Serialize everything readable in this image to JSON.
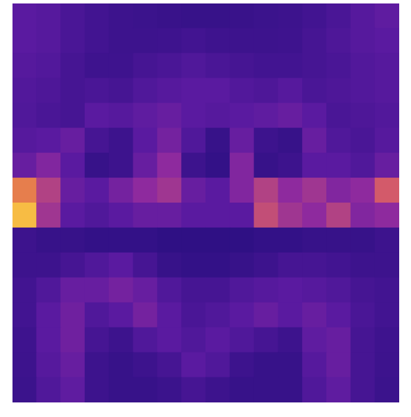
{
  "chart_data": {
    "type": "heatmap",
    "tick_labels": false,
    "xlim": [
      0,
      16
    ],
    "ylim": [
      0,
      16
    ],
    "color_range": [
      0,
      1
    ],
    "cells": [
      [
        0.3,
        0.28,
        0.22,
        0.18,
        0.15,
        0.14,
        0.13,
        0.12,
        0.12,
        0.13,
        0.14,
        0.15,
        0.18,
        0.22,
        0.28,
        0.32
      ],
      [
        0.3,
        0.28,
        0.22,
        0.18,
        0.15,
        0.15,
        0.16,
        0.18,
        0.16,
        0.15,
        0.15,
        0.16,
        0.2,
        0.24,
        0.28,
        0.3
      ],
      [
        0.28,
        0.26,
        0.2,
        0.16,
        0.16,
        0.2,
        0.22,
        0.25,
        0.22,
        0.2,
        0.18,
        0.18,
        0.2,
        0.22,
        0.26,
        0.28
      ],
      [
        0.26,
        0.24,
        0.2,
        0.22,
        0.2,
        0.25,
        0.28,
        0.3,
        0.3,
        0.26,
        0.24,
        0.28,
        0.22,
        0.24,
        0.26,
        0.28
      ],
      [
        0.25,
        0.22,
        0.2,
        0.3,
        0.28,
        0.32,
        0.35,
        0.3,
        0.28,
        0.3,
        0.32,
        0.35,
        0.3,
        0.22,
        0.24,
        0.26
      ],
      [
        0.28,
        0.3,
        0.35,
        0.2,
        0.15,
        0.3,
        0.4,
        0.25,
        0.12,
        0.35,
        0.15,
        0.12,
        0.35,
        0.25,
        0.22,
        0.28
      ],
      [
        0.35,
        0.45,
        0.3,
        0.12,
        0.15,
        0.35,
        0.5,
        0.15,
        0.1,
        0.45,
        0.12,
        0.15,
        0.3,
        0.3,
        0.25,
        0.35
      ],
      [
        0.8,
        0.6,
        0.35,
        0.3,
        0.4,
        0.5,
        0.55,
        0.35,
        0.3,
        0.45,
        0.6,
        0.5,
        0.55,
        0.45,
        0.5,
        0.7
      ],
      [
        0.95,
        0.55,
        0.3,
        0.25,
        0.3,
        0.35,
        0.35,
        0.3,
        0.3,
        0.3,
        0.65,
        0.55,
        0.5,
        0.6,
        0.45,
        0.5
      ],
      [
        0.15,
        0.12,
        0.12,
        0.1,
        0.1,
        0.1,
        0.08,
        0.08,
        0.08,
        0.08,
        0.1,
        0.1,
        0.12,
        0.12,
        0.12,
        0.15
      ],
      [
        0.15,
        0.15,
        0.2,
        0.25,
        0.3,
        0.2,
        0.12,
        0.1,
        0.1,
        0.12,
        0.15,
        0.2,
        0.2,
        0.18,
        0.15,
        0.15
      ],
      [
        0.18,
        0.25,
        0.35,
        0.35,
        0.4,
        0.35,
        0.25,
        0.2,
        0.2,
        0.25,
        0.28,
        0.3,
        0.28,
        0.25,
        0.2,
        0.18
      ],
      [
        0.18,
        0.3,
        0.38,
        0.25,
        0.3,
        0.4,
        0.3,
        0.22,
        0.25,
        0.3,
        0.35,
        0.3,
        0.35,
        0.3,
        0.22,
        0.18
      ],
      [
        0.16,
        0.3,
        0.38,
        0.2,
        0.15,
        0.25,
        0.3,
        0.25,
        0.3,
        0.25,
        0.2,
        0.15,
        0.32,
        0.35,
        0.2,
        0.16
      ],
      [
        0.15,
        0.28,
        0.35,
        0.15,
        0.12,
        0.15,
        0.2,
        0.3,
        0.25,
        0.15,
        0.12,
        0.12,
        0.28,
        0.35,
        0.2,
        0.15
      ],
      [
        0.14,
        0.25,
        0.32,
        0.15,
        0.12,
        0.12,
        0.14,
        0.2,
        0.15,
        0.12,
        0.12,
        0.12,
        0.25,
        0.32,
        0.2,
        0.14
      ]
    ]
  }
}
